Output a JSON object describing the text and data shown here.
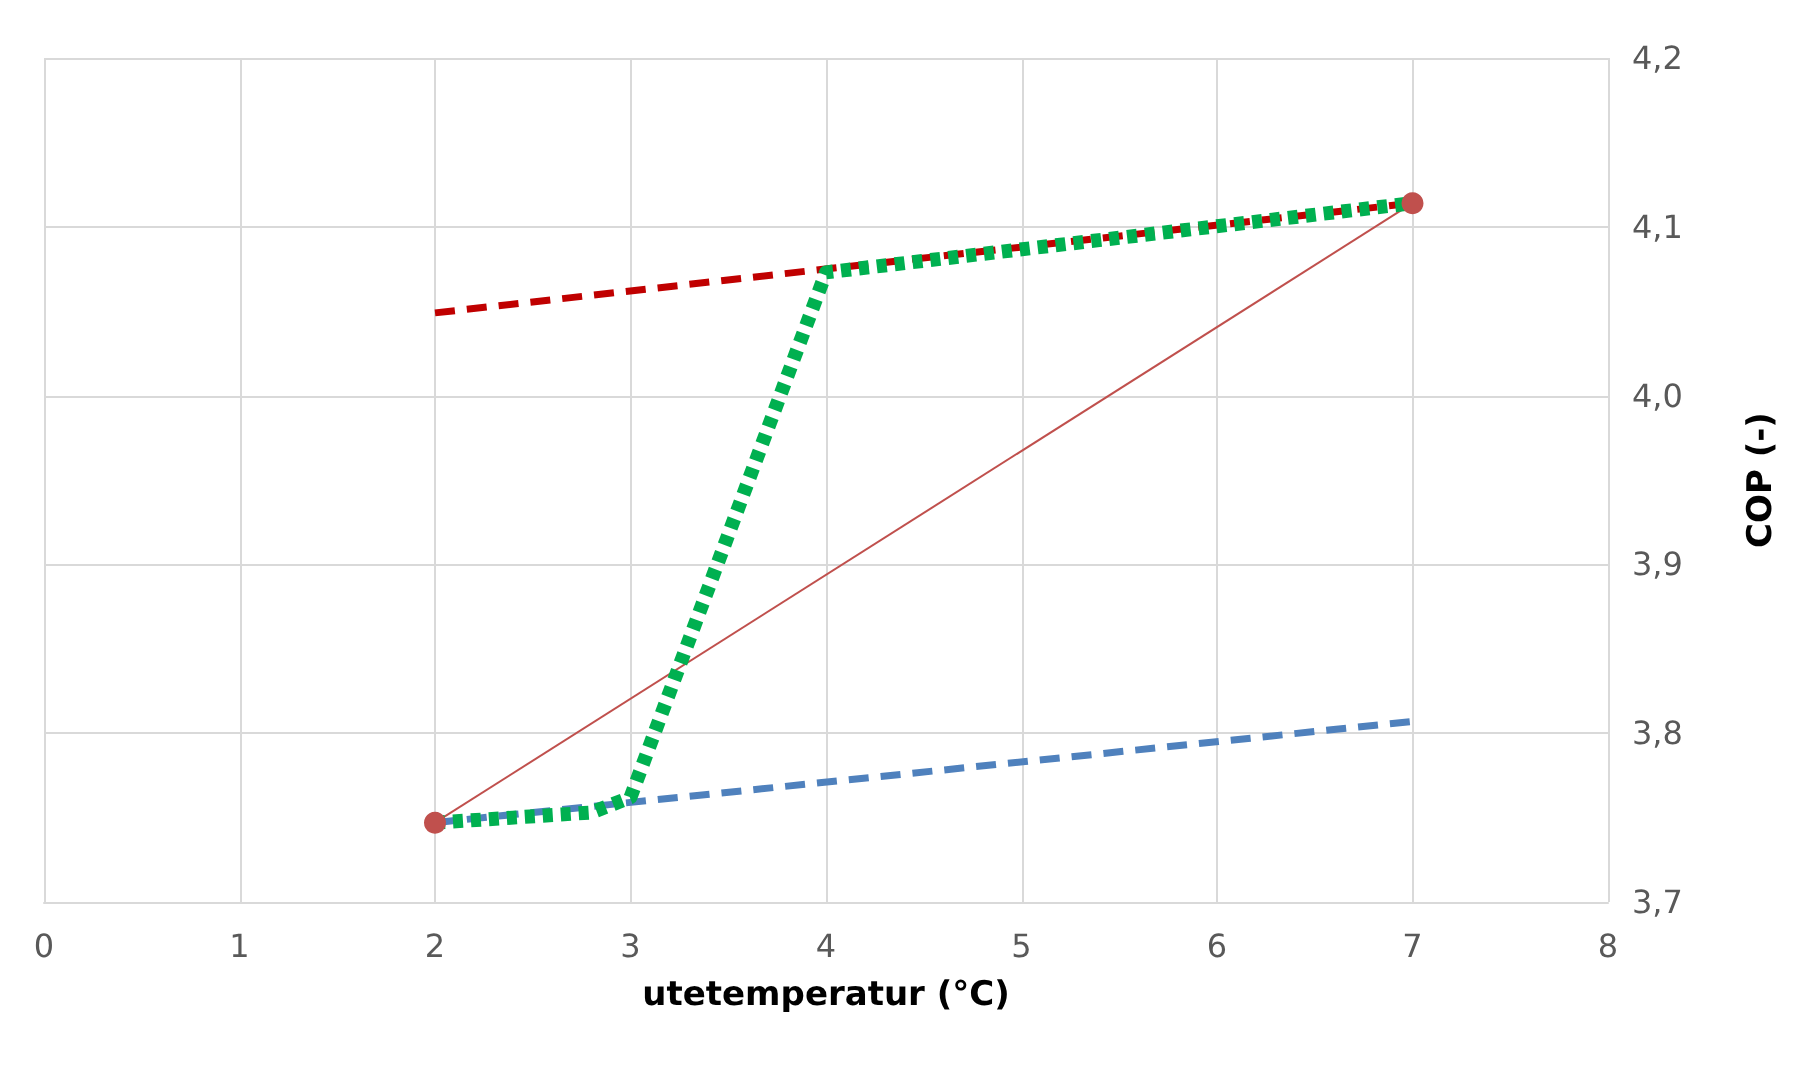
{
  "chart_data": {
    "type": "line",
    "xlabel": "utetemperatur (°C)",
    "ylabel": "COP (-)",
    "xlim": [
      0,
      8
    ],
    "xticks": [
      0,
      1,
      2,
      3,
      4,
      5,
      6,
      7,
      8
    ],
    "ylim": [
      3.7,
      4.2
    ],
    "yticks": [
      {
        "value": 3.7,
        "label": "3,7"
      },
      {
        "value": 3.8,
        "label": "3,8"
      },
      {
        "value": 3.9,
        "label": "3,9"
      },
      {
        "value": 4.0,
        "label": "4,0"
      },
      {
        "value": 4.1,
        "label": "4,1"
      },
      {
        "value": 4.2,
        "label": "4,2"
      }
    ],
    "grid": true,
    "series": [
      {
        "color": "#c0504d",
        "x": [
          2,
          7
        ],
        "values": [
          3.747,
          4.114
        ],
        "marker": "circle",
        "line_style": "solid"
      },
      {
        "color": "#c00000",
        "x": [
          2,
          7
        ],
        "values": [
          4.049,
          4.114
        ],
        "marker": "none",
        "line_style": "dashed"
      },
      {
        "color": "#4f81bd",
        "x": [
          2,
          7
        ],
        "values": [
          3.747,
          3.807
        ],
        "marker": "none",
        "line_style": "dashed"
      },
      {
        "color": "#00b050",
        "x": [
          2,
          2.8,
          3,
          4,
          7
        ],
        "values": [
          3.747,
          3.753,
          3.762,
          4.073,
          4.114
        ],
        "marker": "none",
        "line_style": "dotted"
      }
    ]
  }
}
